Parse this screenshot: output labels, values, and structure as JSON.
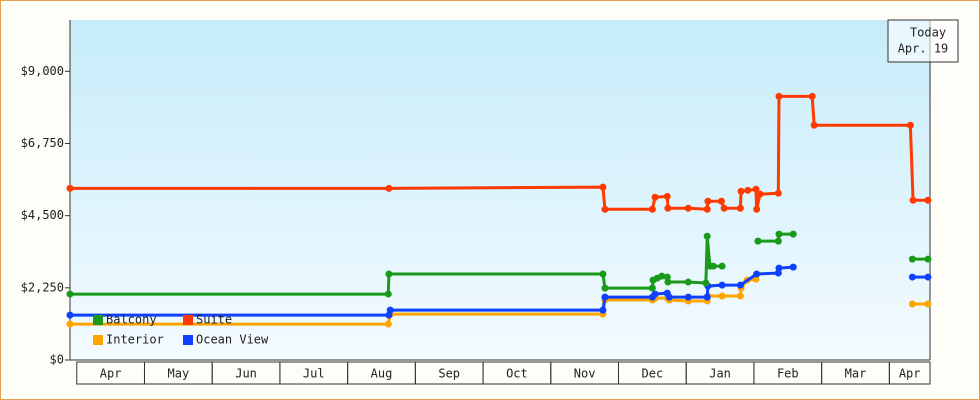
{
  "chart_data": {
    "type": "line",
    "categories": [
      "Apr",
      "May",
      "Jun",
      "Jul",
      "Aug",
      "Sep",
      "Oct",
      "Nov",
      "Dec",
      "Jan",
      "Feb",
      "Mar",
      "Apr"
    ],
    "xlim": [
      -0.1,
      12.6
    ],
    "ylim": [
      0,
      10600
    ],
    "yticks": [
      {
        "value": 0,
        "label": "$0"
      },
      {
        "value": 2250,
        "label": "$2,250"
      },
      {
        "value": 4500,
        "label": "$4,500"
      },
      {
        "value": 6750,
        "label": "$6,750"
      },
      {
        "value": 9000,
        "label": "$9,000"
      }
    ],
    "annotation": [
      "Today",
      "Apr. 19"
    ],
    "series": [
      {
        "name": "Balcony",
        "color": "#1a9a1a",
        "x": [
          -0.1,
          4.6,
          4.61,
          7.77,
          7.8,
          8.5,
          8.51,
          8.57,
          8.64,
          8.72,
          8.73,
          9.03,
          9.29,
          9.31,
          9.35,
          9.4,
          9.53,
          null,
          10.06,
          10.36,
          10.37,
          10.58,
          null,
          12.34,
          12.57
        ],
        "values": [
          2055,
          2055,
          2680,
          2680,
          2240,
          2240,
          2490,
          2550,
          2615,
          2585,
          2430,
          2430,
          2400,
          3860,
          2925,
          2925,
          2925,
          null,
          3705,
          3705,
          3925,
          3925,
          null,
          3145,
          3145
        ]
      },
      {
        "name": "Suite",
        "color": "#ff3a00",
        "x": [
          -0.1,
          4.61,
          7.77,
          7.8,
          8.5,
          8.54,
          8.72,
          8.73,
          9.03,
          9.31,
          9.32,
          9.52,
          9.56,
          9.8,
          9.81,
          9.91,
          10.03,
          10.04,
          10.09,
          10.36,
          10.37,
          10.86,
          10.89,
          12.31,
          12.35,
          12.57
        ],
        "values": [
          5350,
          5350,
          5390,
          4700,
          4700,
          5075,
          5100,
          4730,
          4730,
          4700,
          4950,
          4950,
          4730,
          4730,
          5260,
          5290,
          5325,
          4700,
          5170,
          5200,
          8220,
          8220,
          7320,
          7320,
          4980,
          4980
        ]
      },
      {
        "name": "Interior",
        "color": "#ffa500",
        "x": [
          -0.1,
          4.6,
          4.63,
          7.77,
          7.8,
          8.5,
          8.54,
          8.72,
          8.75,
          9.03,
          9.31,
          9.32,
          9.53,
          9.8,
          9.81,
          9.9,
          10.03,
          null,
          12.34,
          12.57
        ],
        "values": [
          1120,
          1120,
          1430,
          1430,
          1870,
          1870,
          1930,
          1930,
          1870,
          1840,
          1840,
          1995,
          1995,
          1995,
          2240,
          2490,
          2520,
          null,
          1745,
          1745
        ]
      },
      {
        "name": "Ocean View",
        "color": "#1040ff",
        "x": [
          -0.1,
          4.61,
          4.63,
          7.77,
          7.8,
          8.5,
          8.54,
          8.72,
          8.75,
          9.03,
          9.31,
          9.32,
          9.53,
          9.8,
          10.04,
          10.36,
          10.37,
          10.58,
          null,
          12.34,
          12.57
        ],
        "values": [
          1400,
          1400,
          1555,
          1555,
          1960,
          1960,
          2055,
          2085,
          1960,
          1960,
          1960,
          2305,
          2335,
          2335,
          2680,
          2710,
          2865,
          2895,
          null,
          2585,
          2585
        ]
      }
    ]
  }
}
